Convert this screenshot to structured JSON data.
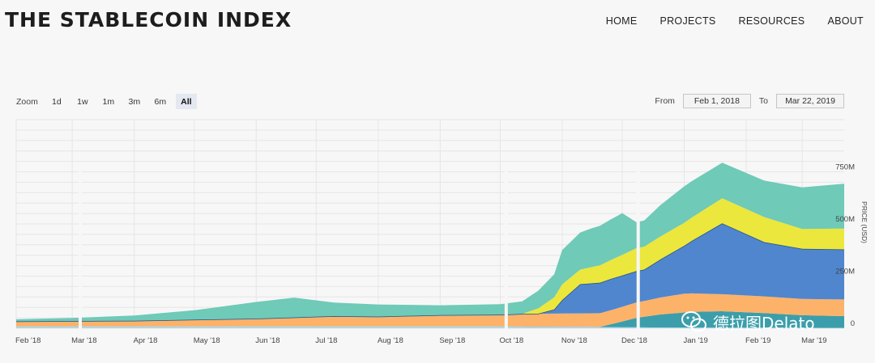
{
  "header": {
    "title": "THE STABLECOIN INDEX",
    "nav": [
      "HOME",
      "PROJECTS",
      "RESOURCES",
      "ABOUT"
    ]
  },
  "zoom": {
    "label": "Zoom",
    "buttons": [
      "1d",
      "1w",
      "1m",
      "3m",
      "6m",
      "All"
    ],
    "active": "All"
  },
  "range": {
    "from_label": "From",
    "from_value": "Feb 1, 2018",
    "to_label": "To",
    "to_value": "Mar 22, 2019"
  },
  "watermark": "德拉图Delato",
  "chart_data": {
    "type": "area",
    "stacked": true,
    "ylabel": "PRICE (USD)",
    "y_ticks": [
      "0",
      "250M",
      "500M",
      "750M"
    ],
    "ylim": [
      0,
      1000
    ],
    "y_unit": "M USD",
    "x_ticks": [
      "Feb '18",
      "Mar '18",
      "Apr '18",
      "May '18",
      "Jun '18",
      "Jul '18",
      "Aug '18",
      "Sep '18",
      "Oct '18",
      "Nov '18",
      "Dec '18",
      "Jan '19",
      "Feb '19",
      "Mar '19"
    ],
    "x_tick_dates": [
      "2018-02-01",
      "2018-03-01",
      "2018-04-01",
      "2018-05-01",
      "2018-06-01",
      "2018-07-01",
      "2018-08-01",
      "2018-09-01",
      "2018-10-01",
      "2018-11-01",
      "2018-12-01",
      "2019-01-01",
      "2019-02-01",
      "2019-03-01"
    ],
    "x_range": [
      "2018-02-01",
      "2019-03-22"
    ],
    "grid": true,
    "colors": {
      "bottom_teal": "#3c9eaa",
      "light_blue": "#aad7ee",
      "orange": "#fdb26a",
      "blue": "#4f86ce",
      "yellow": "#ece73c",
      "top_teal": "#6fcab8"
    },
    "series": [
      {
        "color": "#aad7ee",
        "x": [
          "2018-02-01",
          "2018-06-01",
          "2018-10-01",
          "2018-11-20",
          "2018-12-15",
          "2019-03-22"
        ],
        "values": [
          8,
          8,
          8,
          6,
          4,
          2
        ]
      },
      {
        "color": "#3c9eaa",
        "x": [
          "2018-02-01",
          "2018-10-01",
          "2018-11-20",
          "2018-11-28",
          "2018-12-08",
          "2018-12-20",
          "2019-01-05",
          "2019-01-20",
          "2019-02-10",
          "2019-03-01",
          "2019-03-22"
        ],
        "values": [
          0,
          0,
          1,
          20,
          45,
          62,
          75,
          78,
          70,
          60,
          56
        ]
      },
      {
        "color": "#fdb26a",
        "x": [
          "2018-02-01",
          "2018-04-01",
          "2018-06-01",
          "2018-07-10",
          "2018-08-01",
          "2018-09-01",
          "2018-10-01",
          "2018-10-15",
          "2018-11-01",
          "2018-11-20",
          "2018-12-01",
          "2018-12-15",
          "2019-01-01",
          "2019-01-20",
          "2019-02-10",
          "2019-03-01",
          "2019-03-22"
        ],
        "values": [
          25,
          28,
          38,
          50,
          48,
          55,
          57,
          62,
          63,
          65,
          70,
          78,
          90,
          82,
          80,
          78,
          80
        ]
      },
      {
        "color": "#4f86ce",
        "x": [
          "2018-02-01",
          "2018-10-20",
          "2018-10-28",
          "2018-11-01",
          "2018-11-10",
          "2018-11-25",
          "2018-12-08",
          "2018-12-12",
          "2019-01-01",
          "2019-01-20",
          "2019-02-10",
          "2019-03-01",
          "2019-03-22"
        ],
        "values": [
          0,
          0,
          20,
          65,
          140,
          150,
          150,
          150,
          230,
          340,
          260,
          240,
          240
        ]
      },
      {
        "color": "#ece73c",
        "x": [
          "2018-02-01",
          "2018-10-12",
          "2018-10-20",
          "2018-11-01",
          "2018-11-10",
          "2018-11-25",
          "2018-12-08",
          "2018-12-12",
          "2019-01-01",
          "2019-01-20",
          "2019-02-10",
          "2019-03-01",
          "2019-03-22"
        ],
        "values": [
          0,
          0,
          25,
          75,
          70,
          90,
          110,
          110,
          110,
          120,
          120,
          95,
          100
        ]
      },
      {
        "color": "#6fcab8",
        "x": [
          "2018-02-01",
          "2018-03-01",
          "2018-04-01",
          "2018-05-01",
          "2018-06-01",
          "2018-06-20",
          "2018-07-10",
          "2018-08-01",
          "2018-09-01",
          "2018-10-01",
          "2018-10-12",
          "2018-10-28",
          "2018-11-01",
          "2018-11-15",
          "2018-12-01",
          "2018-12-08",
          "2018-12-12",
          "2018-12-20",
          "2019-01-01",
          "2019-01-20",
          "2019-02-10",
          "2019-03-01",
          "2019-03-22"
        ],
        "values": [
          10,
          15,
          25,
          45,
          80,
          95,
          65,
          58,
          47,
          50,
          60,
          110,
          165,
          185,
          200,
          125,
          125,
          150,
          175,
          170,
          175,
          200,
          215
        ]
      }
    ],
    "gaps": [
      "2018-03-05",
      "2018-10-04",
      "2018-12-09"
    ]
  }
}
